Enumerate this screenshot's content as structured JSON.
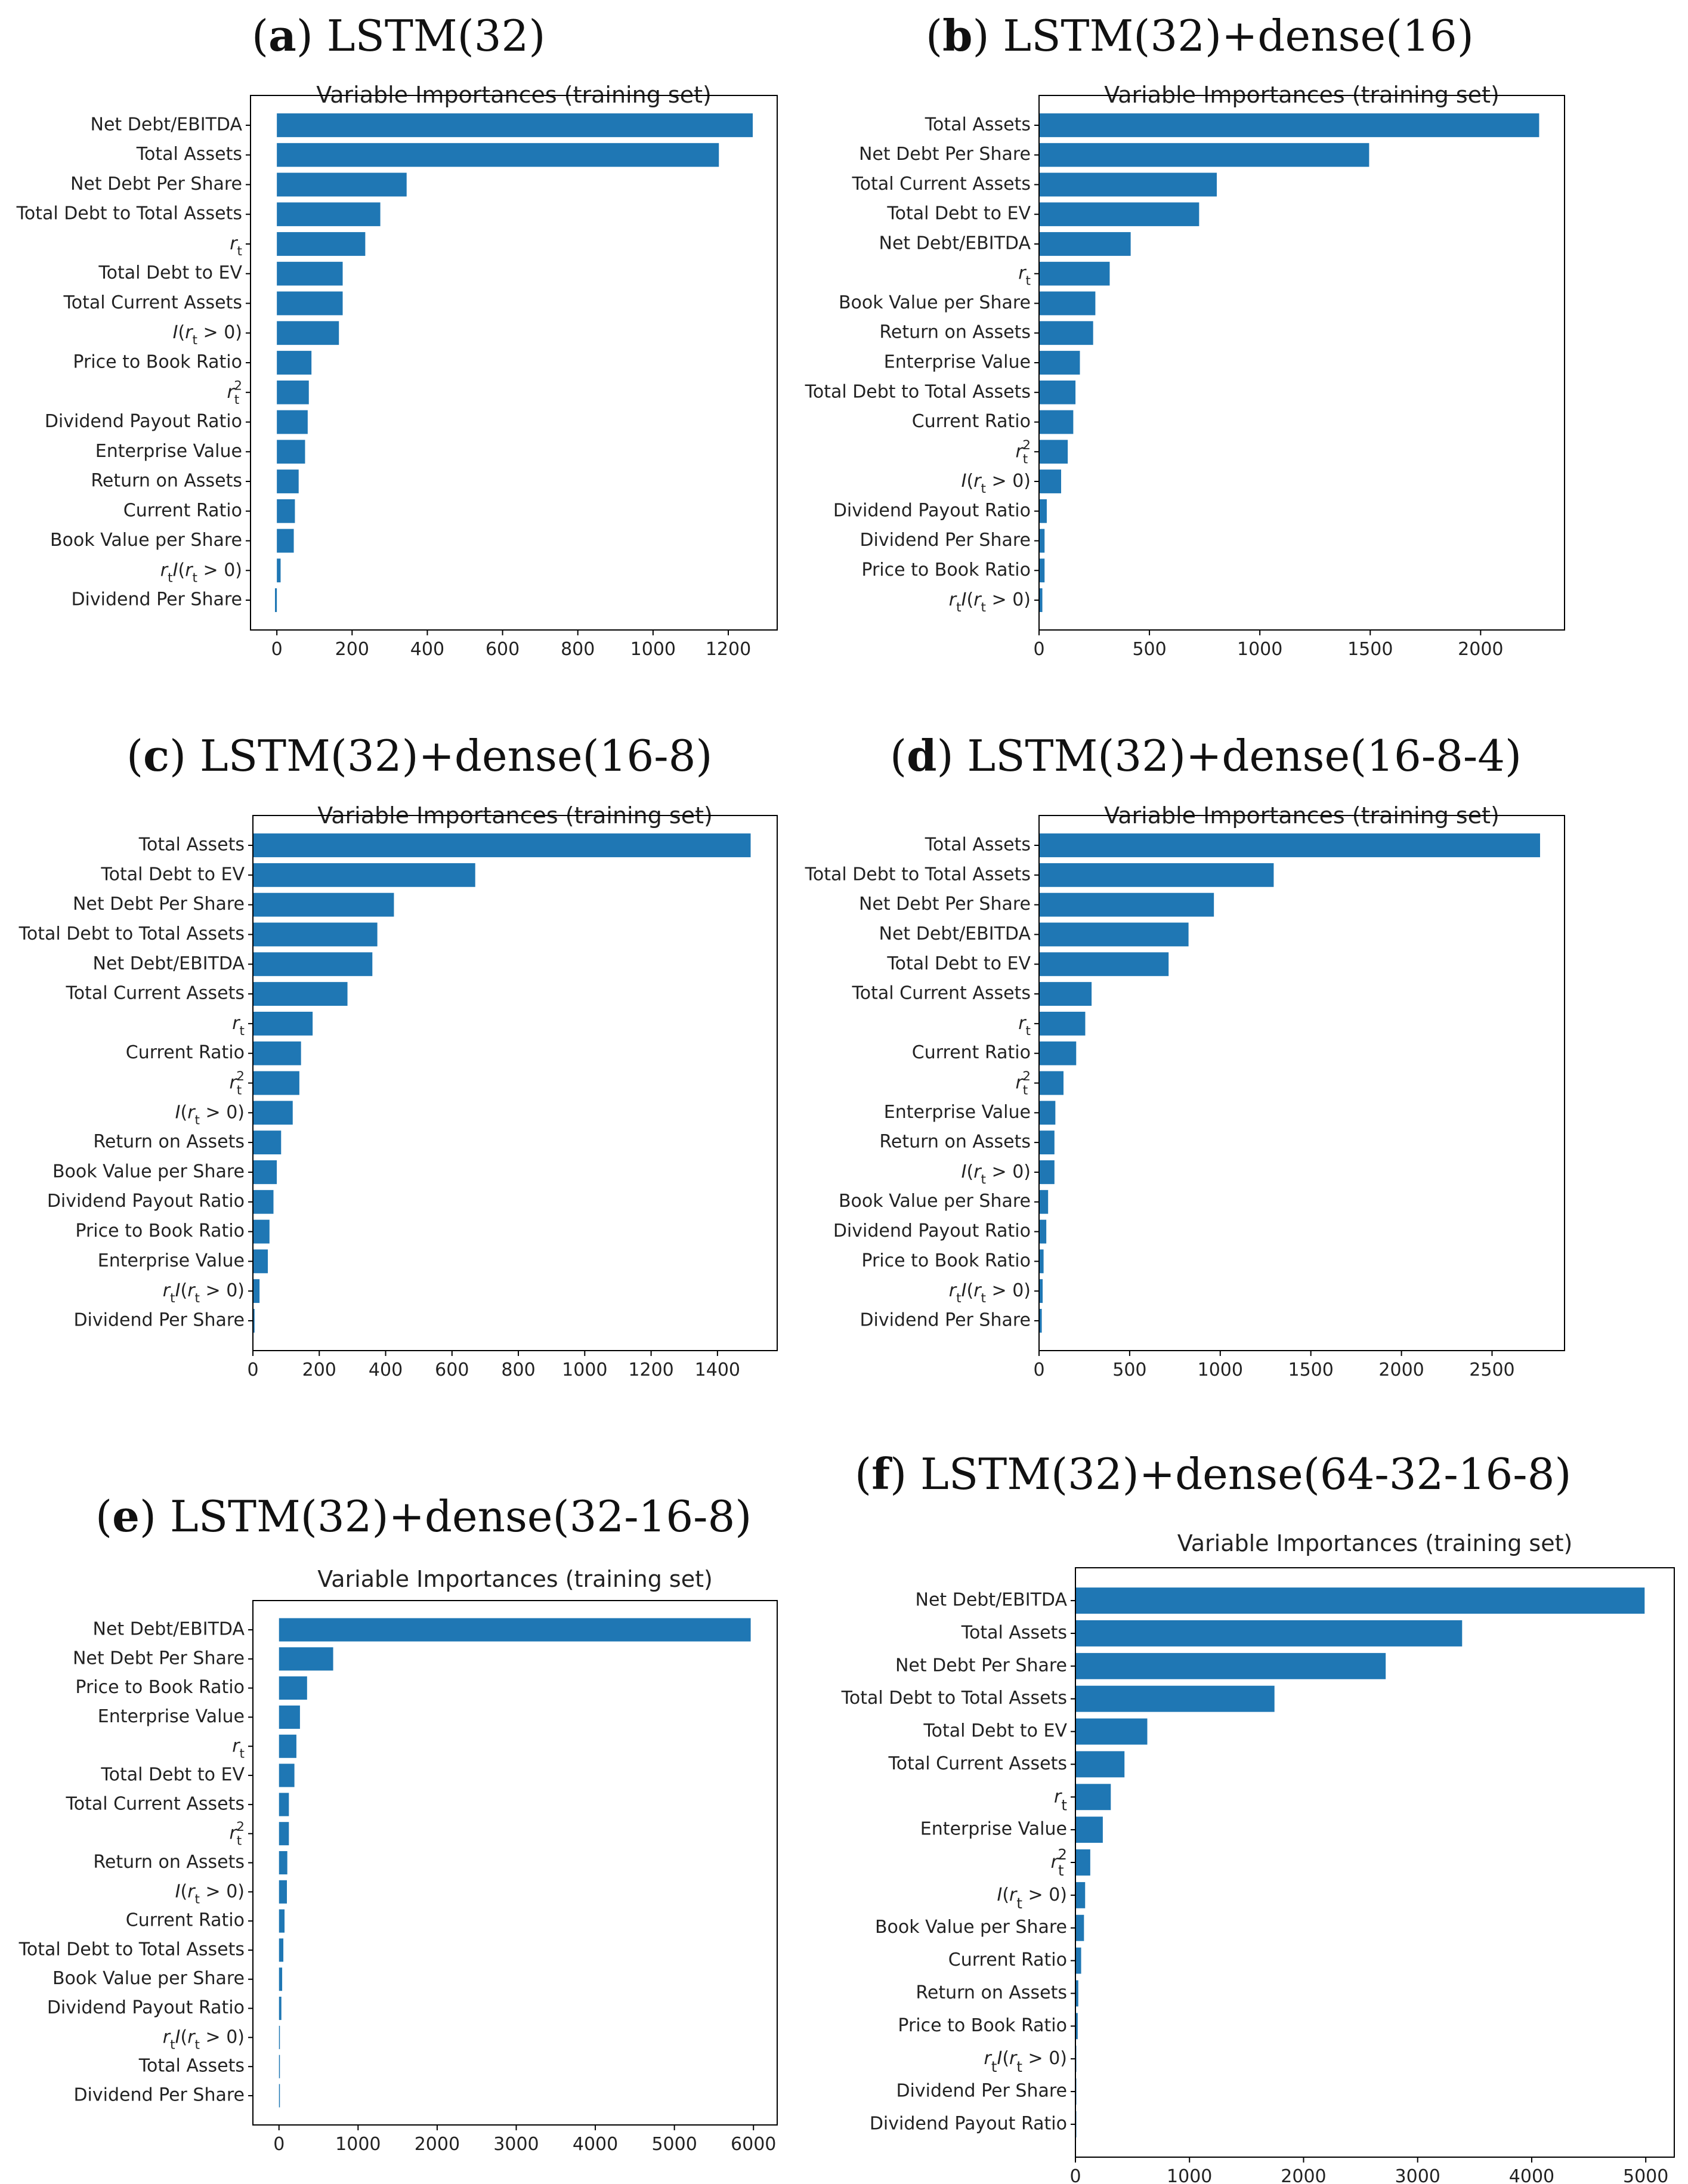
{
  "colors": {
    "bar": "#1f77b4",
    "axis": "#000000",
    "text": "#222222"
  },
  "chart_data": [
    {
      "type": "bar",
      "orientation": "horizontal",
      "panel_letter": "a",
      "panel_label": "LSTM(32)",
      "title": "Variable Importances (training set)",
      "xlim": [
        -70,
        1330
      ],
      "xticks": [
        0,
        200,
        400,
        600,
        800,
        1000,
        1200
      ],
      "categories": [
        "Net Debt/EBITDA",
        "Total Assets",
        "Net Debt Per Share",
        "Total Debt to Total Assets",
        "r_t",
        "Total Debt to EV",
        "Total Current Assets",
        "I(r_t > 0)",
        "Price to Book Ratio",
        "r_t^2",
        "Dividend Payout Ratio",
        "Enterprise Value",
        "Return on Assets",
        "Current Ratio",
        "Book Value per Share",
        "r_t^2 I(r_t > 0)",
        "Dividend Per Share"
      ],
      "values": [
        1265,
        1175,
        345,
        275,
        235,
        175,
        175,
        165,
        92,
        85,
        82,
        75,
        58,
        48,
        45,
        10,
        -5
      ]
    },
    {
      "type": "bar",
      "orientation": "horizontal",
      "panel_letter": "b",
      "panel_label": "LSTM(32)+dense(16)",
      "title": "Variable Importances (training set)",
      "xlim": [
        0,
        2380
      ],
      "xticks": [
        0,
        500,
        1000,
        1500,
        2000
      ],
      "categories": [
        "Total Assets",
        "Net Debt Per Share",
        "Total Current Assets",
        "Total Debt to EV",
        "Net Debt/EBITDA",
        "r_t",
        "Book Value per Share",
        "Return on Assets",
        "Enterprise Value",
        "Total Debt to Total Assets",
        "Current Ratio",
        "r_t^2",
        "I(r_t > 0)",
        "Dividend Payout Ratio",
        "Dividend Per Share",
        "Price to Book Ratio",
        "r_t^2 I(r_t > 0)"
      ],
      "values": [
        2265,
        1495,
        805,
        725,
        415,
        320,
        255,
        245,
        185,
        165,
        155,
        130,
        100,
        35,
        25,
        25,
        15
      ]
    },
    {
      "type": "bar",
      "orientation": "horizontal",
      "panel_letter": "c",
      "panel_label": "LSTM(32)+dense(16-8)",
      "title": "Variable Importances (training set)",
      "xlim": [
        0,
        1580
      ],
      "xticks": [
        0,
        200,
        400,
        600,
        800,
        1000,
        1200,
        1400
      ],
      "categories": [
        "Total Assets",
        "Total Debt to EV",
        "Net Debt Per Share",
        "Total Debt to Total Assets",
        "Net Debt/EBITDA",
        "Total Current Assets",
        "r_t",
        "Current Ratio",
        "r_t^2",
        "I(r_t > 0)",
        "Return on Assets",
        "Book Value per Share",
        "Dividend Payout Ratio",
        "Price to Book Ratio",
        "Enterprise Value",
        "r_t^2 I(r_t > 0)",
        "Dividend Per Share"
      ],
      "values": [
        1500,
        670,
        425,
        375,
        360,
        285,
        180,
        145,
        140,
        120,
        85,
        72,
        62,
        50,
        45,
        20,
        5
      ]
    },
    {
      "type": "bar",
      "orientation": "horizontal",
      "panel_letter": "d",
      "panel_label": "LSTM(32)+dense(16-8-4)",
      "title": "Variable Importances (training set)",
      "xlim": [
        0,
        2900
      ],
      "xticks": [
        0,
        500,
        1000,
        1500,
        2000,
        2500
      ],
      "categories": [
        "Total Assets",
        "Total Debt to Total Assets",
        "Net Debt Per Share",
        "Net Debt/EBITDA",
        "Total Debt to EV",
        "Total Current Assets",
        "r_t",
        "Current Ratio",
        "r_t^2",
        "Enterprise Value",
        "Return on Assets",
        "I(r_t > 0)",
        "Book Value per Share",
        "Dividend Payout Ratio",
        "Price to Book Ratio",
        "r_t^2 I(r_t > 0)",
        "Dividend Per Share"
      ],
      "values": [
        2765,
        1295,
        965,
        825,
        715,
        290,
        255,
        205,
        135,
        90,
        85,
        85,
        50,
        40,
        25,
        20,
        15
      ]
    },
    {
      "type": "bar",
      "orientation": "horizontal",
      "panel_letter": "e",
      "panel_label": "LSTM(32)+dense(32-16-8)",
      "title": "Variable Importances (training set)",
      "xlim": [
        -330,
        6300
      ],
      "xticks": [
        0,
        1000,
        2000,
        3000,
        4000,
        5000,
        6000
      ],
      "categories": [
        "Net Debt/EBITDA",
        "Net Debt Per Share",
        "Price to Book Ratio",
        "Enterprise Value",
        "r_t",
        "Total Debt to EV",
        "Total Current Assets",
        "r_t^2",
        "Return on Assets",
        "I(r_t > 0)",
        "Current Ratio",
        "Total Debt to Total Assets",
        "Book Value per Share",
        "Dividend Payout Ratio",
        "r_t^2 I(r_t > 0)",
        "Total Assets",
        "Dividend Per Share"
      ],
      "values": [
        5965,
        685,
        355,
        265,
        220,
        195,
        125,
        125,
        105,
        100,
        70,
        55,
        40,
        30,
        10,
        5,
        0
      ]
    },
    {
      "type": "bar",
      "orientation": "horizontal",
      "panel_letter": "f",
      "panel_label": "LSTM(32)+dense(64-32-16-8)",
      "title": "Variable Importances (training set)",
      "xlim": [
        0,
        5250
      ],
      "xticks": [
        0,
        1000,
        2000,
        3000,
        4000,
        5000
      ],
      "categories": [
        "Net Debt/EBITDA",
        "Total Assets",
        "Net Debt Per Share",
        "Total Debt to Total Assets",
        "Total Debt to EV",
        "Total Current Assets",
        "r_t",
        "Enterprise Value",
        "r_t^2",
        "I(r_t > 0)",
        "Book Value per Share",
        "Current Ratio",
        "Return on Assets",
        "Price to Book Ratio",
        "r_t^2 I(r_t > 0)",
        "Dividend Per Share",
        "Dividend Payout Ratio"
      ],
      "values": [
        4990,
        3390,
        2720,
        1745,
        630,
        430,
        310,
        240,
        130,
        85,
        75,
        50,
        25,
        20,
        5,
        2,
        1
      ]
    }
  ]
}
